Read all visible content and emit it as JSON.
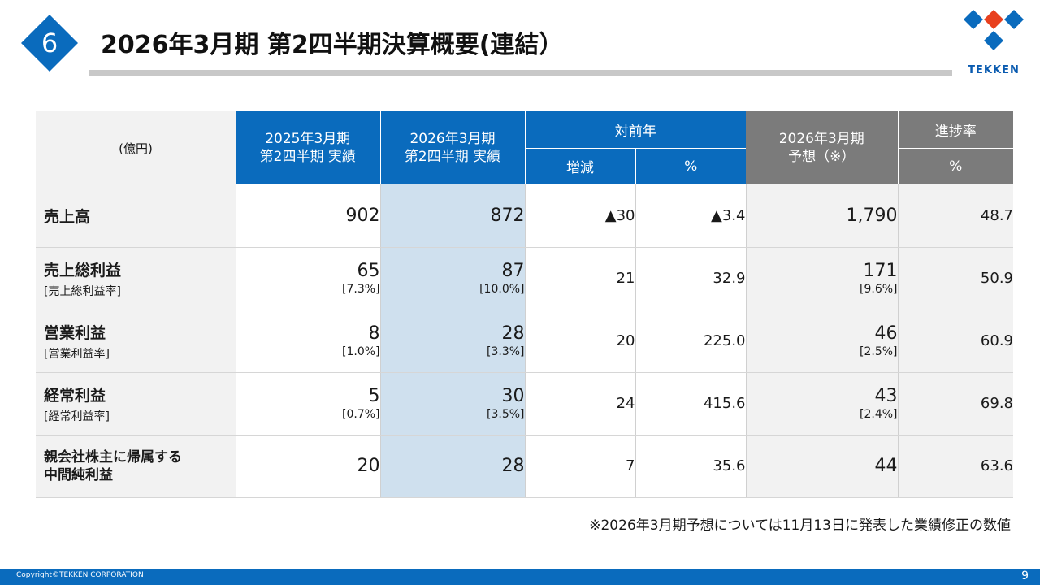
{
  "header": {
    "slide_number": "6",
    "title": "2026年3月期 第2四半期決算概要(連結）",
    "logo_text": "TEKKEN"
  },
  "table": {
    "unit": "(億円)",
    "col_prev": "2025年3月期\n第2四半期 実績",
    "col_curr": "2026年3月期\n第2四半期 実績",
    "col_yoy": "対前年",
    "col_yoy_change": "増減",
    "col_yoy_pct": "%",
    "col_forecast": "2026年3月期\n予想（※）",
    "col_progress": "進捗率",
    "col_progress_pct": "%",
    "rows": [
      {
        "label": "売上高",
        "sub": "",
        "prev": "902",
        "prev_sub": "",
        "curr": "872",
        "curr_sub": "",
        "change": "▲30",
        "pct": "▲3.4",
        "forecast": "1,790",
        "forecast_sub": "",
        "progress": "48.7"
      },
      {
        "label": "売上総利益",
        "sub": "[売上総利益率]",
        "prev": "65",
        "prev_sub": "[7.3%]",
        "curr": "87",
        "curr_sub": "[10.0%]",
        "change": "21",
        "pct": "32.9",
        "forecast": "171",
        "forecast_sub": "[9.6%]",
        "progress": "50.9"
      },
      {
        "label": "営業利益",
        "sub": "[営業利益率]",
        "prev": "8",
        "prev_sub": "[1.0%]",
        "curr": "28",
        "curr_sub": "[3.3%]",
        "change": "20",
        "pct": "225.0",
        "forecast": "46",
        "forecast_sub": "[2.5%]",
        "progress": "60.9"
      },
      {
        "label": "経常利益",
        "sub": "[経常利益率]",
        "prev": "5",
        "prev_sub": "[0.7%]",
        "curr": "30",
        "curr_sub": "[3.5%]",
        "change": "24",
        "pct": "415.6",
        "forecast": "43",
        "forecast_sub": "[2.4%]",
        "progress": "69.8"
      },
      {
        "label": "親会社株主に帰属する",
        "label2": "中間純利益",
        "prev": "20",
        "curr": "28",
        "change": "7",
        "pct": "35.6",
        "forecast": "44",
        "progress": "63.6"
      }
    ]
  },
  "note": "※2026年3月期予想については11月13日に発表した業績修正の数値",
  "footer": {
    "copyright": "Copyright©TEKKEN CORPORATION",
    "page": "9"
  },
  "colors": {
    "accent_blue": "#0a6bbd",
    "highlight_col": "#cfe0ee",
    "forecast_gray": "#7b7b7b",
    "logo_red": "#e8401e"
  }
}
